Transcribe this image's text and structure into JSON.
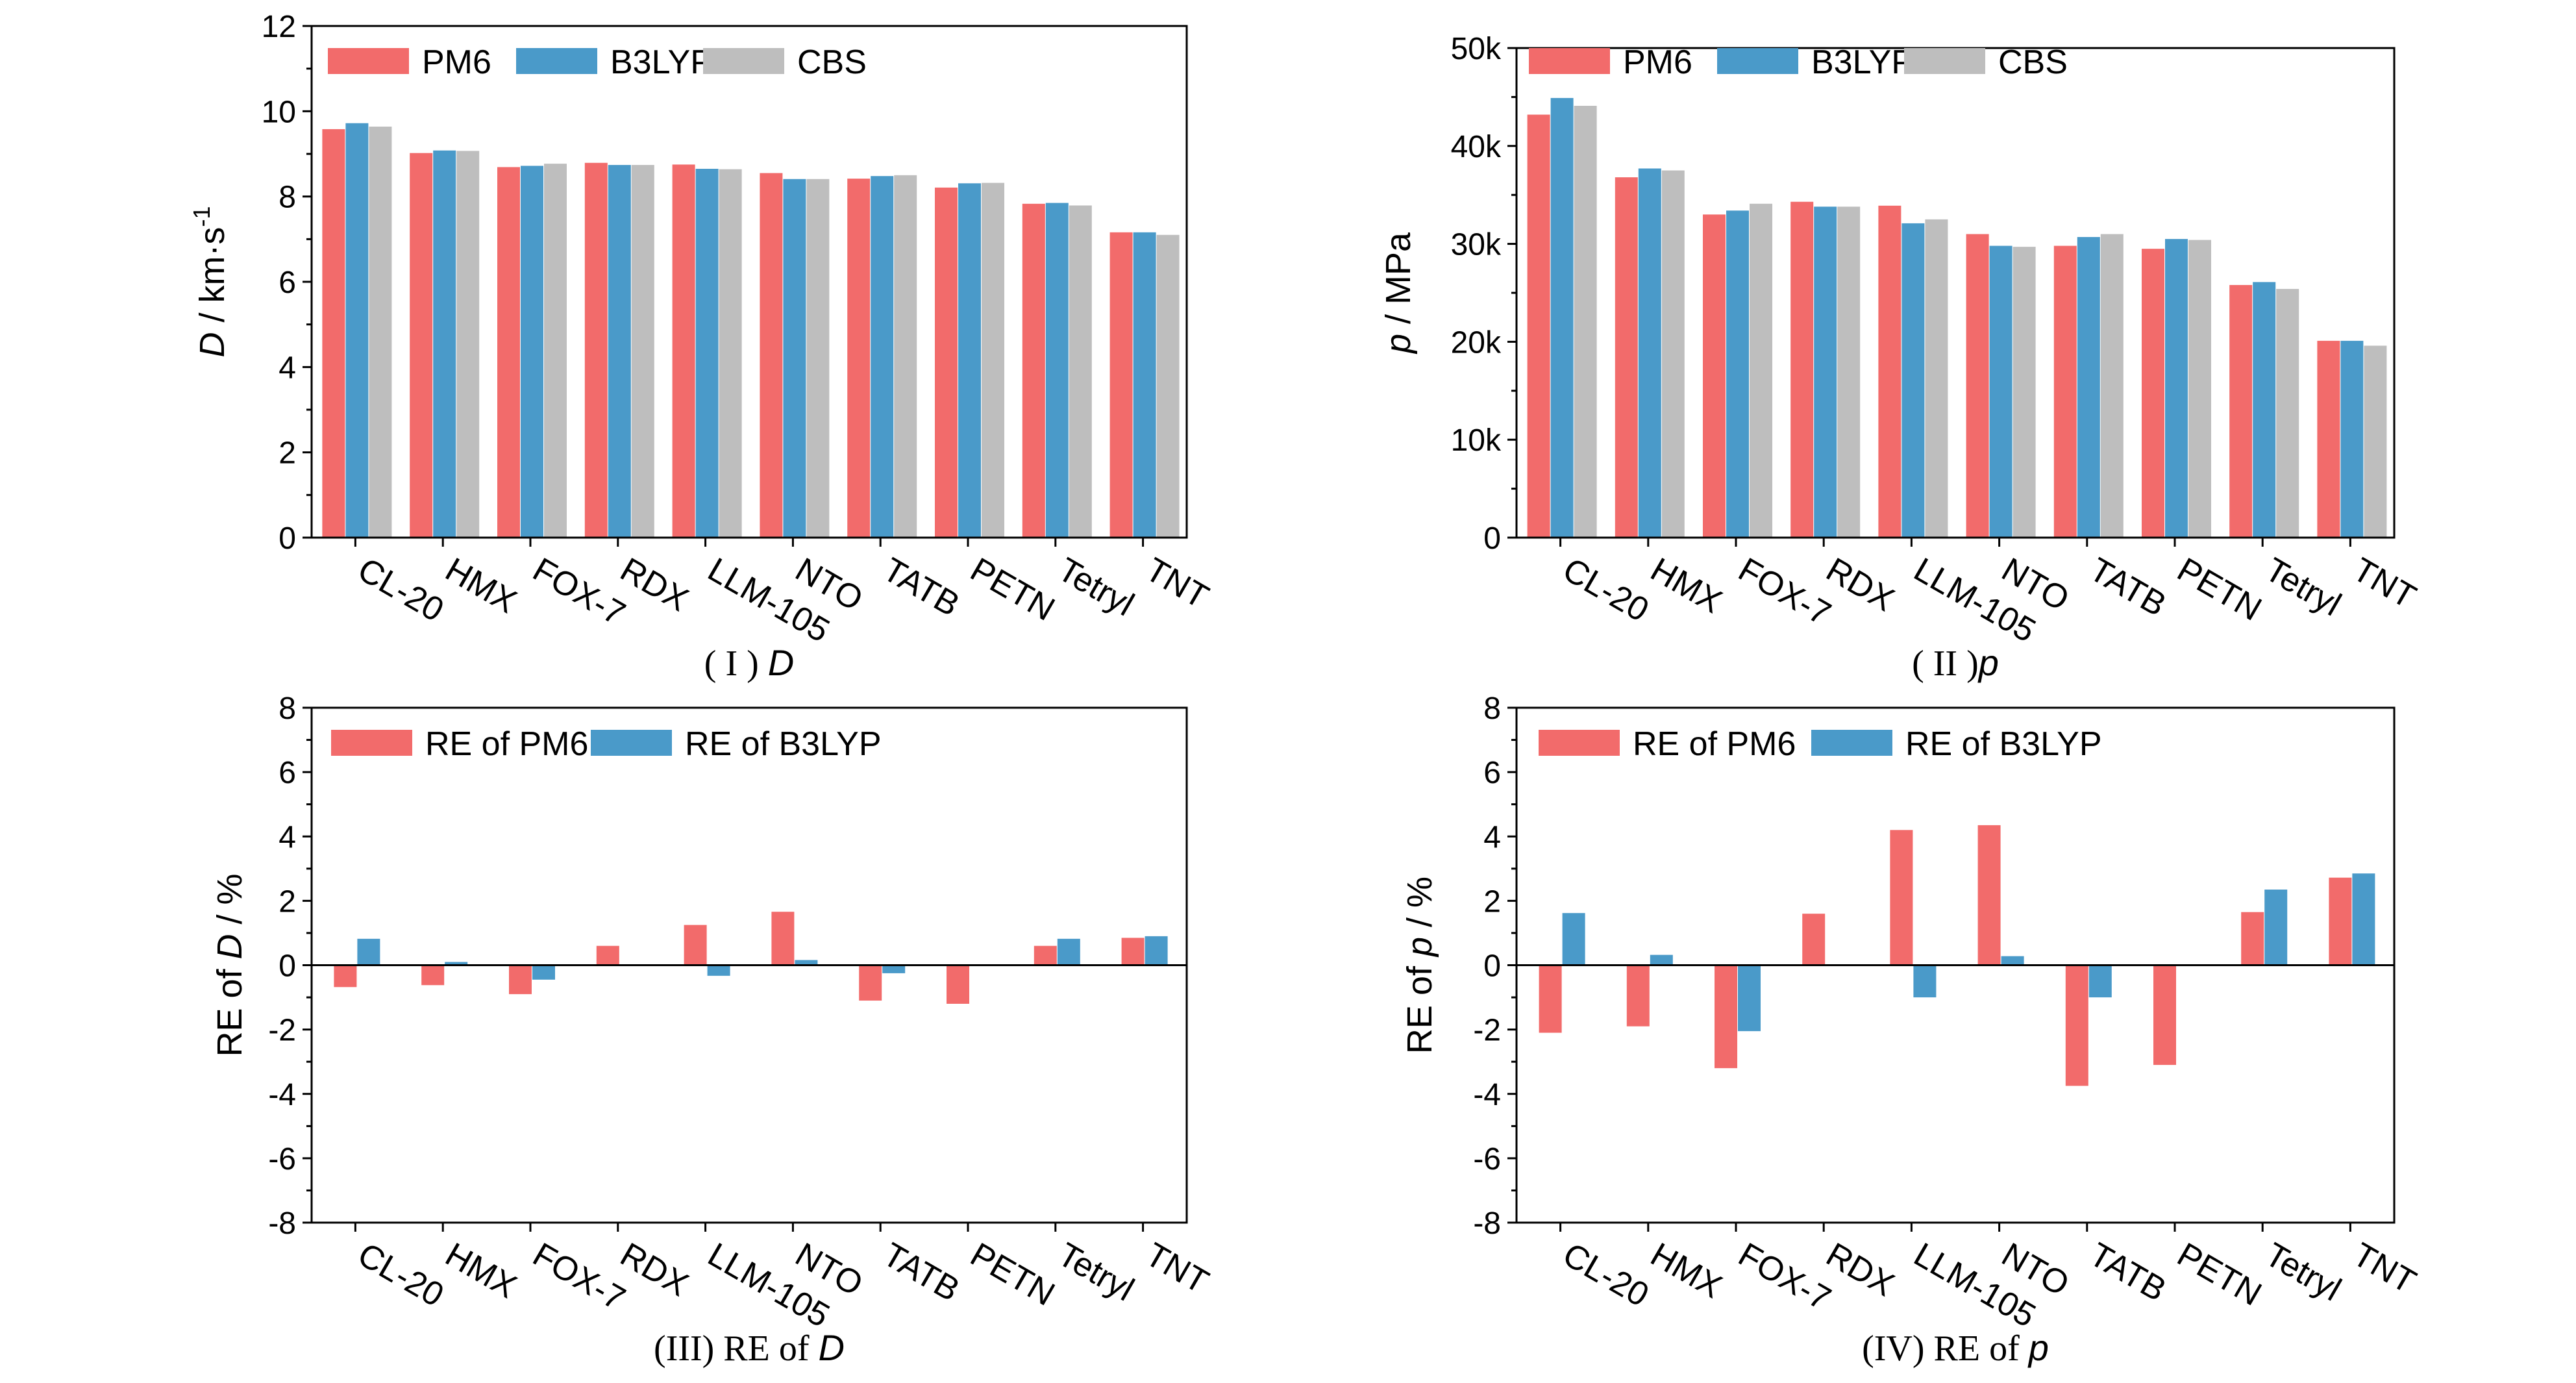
{
  "colors": {
    "pm6": "#F26B6B",
    "b3lyp": "#4A9AC9",
    "cbs": "#BEBEBE",
    "axis": "#000000"
  },
  "chart_data": [
    {
      "id": "p1",
      "type": "bar",
      "caption": {
        "prefix": "( I ) ",
        "symbol": "D",
        "suffix": ""
      },
      "ylabel": {
        "symbol": "D",
        "unit": " / km·s",
        "sup": "-1"
      },
      "ylim": [
        0,
        12
      ],
      "yticks": [
        0,
        2,
        4,
        6,
        8,
        10,
        12
      ],
      "ytick_labels": [
        "0",
        "2",
        "4",
        "6",
        "8",
        "10",
        "12"
      ],
      "categories": [
        "CL-20",
        "HMX",
        "FOX-7",
        "RDX",
        "LLM-105",
        "NTO",
        "TATB",
        "PETN",
        "Tetryl",
        "TNT"
      ],
      "legend": [
        "PM6",
        "B3LYP",
        "CBS"
      ],
      "series": [
        {
          "name": "PM6",
          "values": [
            9.58,
            9.02,
            8.69,
            8.79,
            8.75,
            8.55,
            8.42,
            8.21,
            7.83,
            7.16
          ]
        },
        {
          "name": "B3LYP",
          "values": [
            9.72,
            9.08,
            8.72,
            8.74,
            8.65,
            8.41,
            8.48,
            8.31,
            7.85,
            7.16
          ]
        },
        {
          "name": "CBS",
          "values": [
            9.64,
            9.07,
            8.77,
            8.74,
            8.64,
            8.41,
            8.5,
            8.32,
            7.79,
            7.1
          ]
        }
      ],
      "zero_line": false
    },
    {
      "id": "p2",
      "type": "bar",
      "caption": {
        "prefix": "( II )",
        "symbol": "p",
        "suffix": ""
      },
      "ylabel": {
        "symbol": "p",
        "unit": " / MPa",
        "sup": ""
      },
      "ylim": [
        0,
        50000
      ],
      "yticks": [
        0,
        10000,
        20000,
        30000,
        40000,
        50000
      ],
      "ytick_labels": [
        "0",
        "10k",
        "20k",
        "30k",
        "40k",
        "50k"
      ],
      "categories": [
        "CL-20",
        "HMX",
        "FOX-7",
        "RDX",
        "LLM-105",
        "NTO",
        "TATB",
        "PETN",
        "Tetryl",
        "TNT"
      ],
      "legend": [
        "PM6",
        "B3LYP",
        "CBS"
      ],
      "series": [
        {
          "name": "PM6",
          "values": [
            43200,
            36800,
            33000,
            34300,
            33900,
            31000,
            29800,
            29500,
            25800,
            20100
          ]
        },
        {
          "name": "B3LYP",
          "values": [
            44900,
            37700,
            33400,
            33800,
            32100,
            29800,
            30700,
            30500,
            26100,
            20100
          ]
        },
        {
          "name": "CBS",
          "values": [
            44100,
            37500,
            34100,
            33800,
            32500,
            29700,
            31000,
            30400,
            25400,
            19600
          ]
        }
      ],
      "zero_line": false
    },
    {
      "id": "p3",
      "type": "bar",
      "caption": {
        "prefix": "(III) RE of ",
        "symbol": "D",
        "suffix": ""
      },
      "ylabel": {
        "prefix": "RE of ",
        "symbol": "D",
        "unit": " / %",
        "sup": ""
      },
      "ylim": [
        -8,
        8
      ],
      "yticks": [
        -8,
        -6,
        -4,
        -2,
        0,
        2,
        4,
        6,
        8
      ],
      "ytick_labels": [
        "-8",
        "-6",
        "-4",
        "-2",
        "0",
        "2",
        "4",
        "6",
        "8"
      ],
      "categories": [
        "CL-20",
        "HMX",
        "FOX-7",
        "RDX",
        "LLM-105",
        "NTO",
        "TATB",
        "PETN",
        "Tetryl",
        "TNT"
      ],
      "legend": [
        "RE of PM6",
        "RE of B3LYP"
      ],
      "series": [
        {
          "name": "RE of PM6",
          "values": [
            -0.68,
            -0.62,
            -0.9,
            0.6,
            1.25,
            1.66,
            -1.1,
            -1.2,
            0.6,
            0.85
          ]
        },
        {
          "name": "RE of B3LYP",
          "values": [
            0.82,
            0.1,
            -0.45,
            0.0,
            -0.33,
            0.16,
            -0.25,
            0.0,
            0.82,
            0.9
          ]
        }
      ],
      "zero_line": true
    },
    {
      "id": "p4",
      "type": "bar",
      "caption": {
        "prefix": "(IV) RE of ",
        "symbol": "p",
        "suffix": ""
      },
      "ylabel": {
        "prefix": "RE of ",
        "symbol": "p",
        "unit": " / %",
        "sup": ""
      },
      "ylim": [
        -8,
        8
      ],
      "yticks": [
        -8,
        -6,
        -4,
        -2,
        0,
        2,
        4,
        6,
        8
      ],
      "ytick_labels": [
        "-8",
        "-6",
        "-4",
        "-2",
        "0",
        "2",
        "4",
        "6",
        "8"
      ],
      "categories": [
        "CL-20",
        "HMX",
        "FOX-7",
        "RDX",
        "LLM-105",
        "NTO",
        "TATB",
        "PETN",
        "Tetryl",
        "TNT"
      ],
      "legend": [
        "RE of PM6",
        "RE of B3LYP"
      ],
      "series": [
        {
          "name": "RE of PM6",
          "values": [
            -2.1,
            -1.9,
            -3.2,
            1.6,
            4.2,
            4.35,
            -3.75,
            -3.1,
            1.65,
            2.72
          ]
        },
        {
          "name": "RE of B3LYP",
          "values": [
            1.62,
            0.32,
            -2.05,
            0.0,
            -1.0,
            0.28,
            -1.0,
            0.0,
            2.35,
            2.85
          ]
        }
      ],
      "zero_line": true
    }
  ]
}
